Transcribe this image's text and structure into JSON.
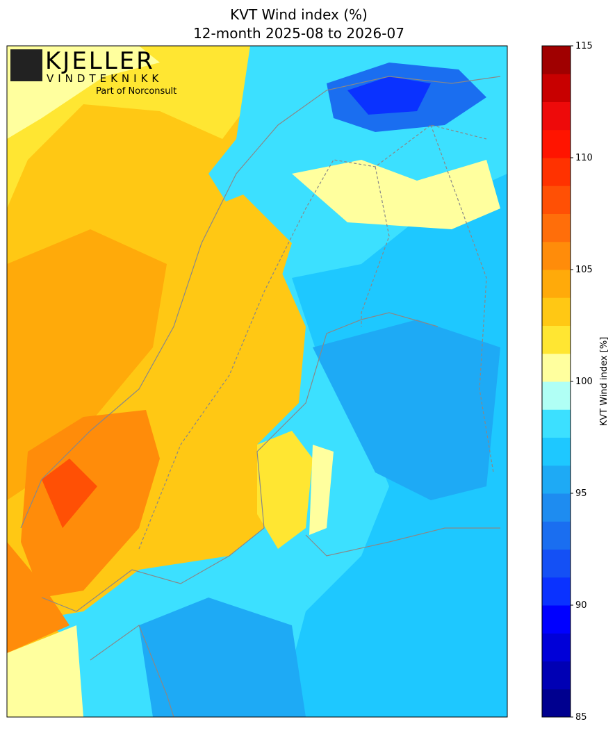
{
  "title": [
    "KVT Wind index (%)",
    "12-month 2025-08 to 2026-07"
  ],
  "logo": {
    "name": "KJELLER",
    "subname": "VINDTEKNIKK",
    "tagline": "Part of Norconsult"
  },
  "colorbar": {
    "label": "KVT Wind index [%]",
    "lim": [
      85,
      115
    ],
    "ticks": [
      85,
      90,
      95,
      100,
      105,
      110,
      115
    ],
    "levels": [
      85,
      86.25,
      87.5,
      88.75,
      90,
      91.25,
      92.5,
      93.75,
      95,
      96.25,
      97.5,
      98.75,
      100,
      101.25,
      102.5,
      103.75,
      105,
      106.25,
      107.5,
      108.75,
      110,
      111.25,
      112.5,
      113.75,
      115
    ],
    "colors": [
      "#00008f",
      "#0000b4",
      "#0000d8",
      "#0000ff",
      "#0a32ff",
      "#1450f5",
      "#1a6ef0",
      "#1e8cf0",
      "#1eaaf5",
      "#1ec8ff",
      "#3ce0ff",
      "#b0fff5",
      "#ffff9e",
      "#ffe632",
      "#ffc814",
      "#ffaa0a",
      "#ff8c0a",
      "#ff6e0a",
      "#ff5005",
      "#ff3200",
      "#ff1400",
      "#ee0a0a",
      "#c80000",
      "#a00000"
    ]
  }
}
